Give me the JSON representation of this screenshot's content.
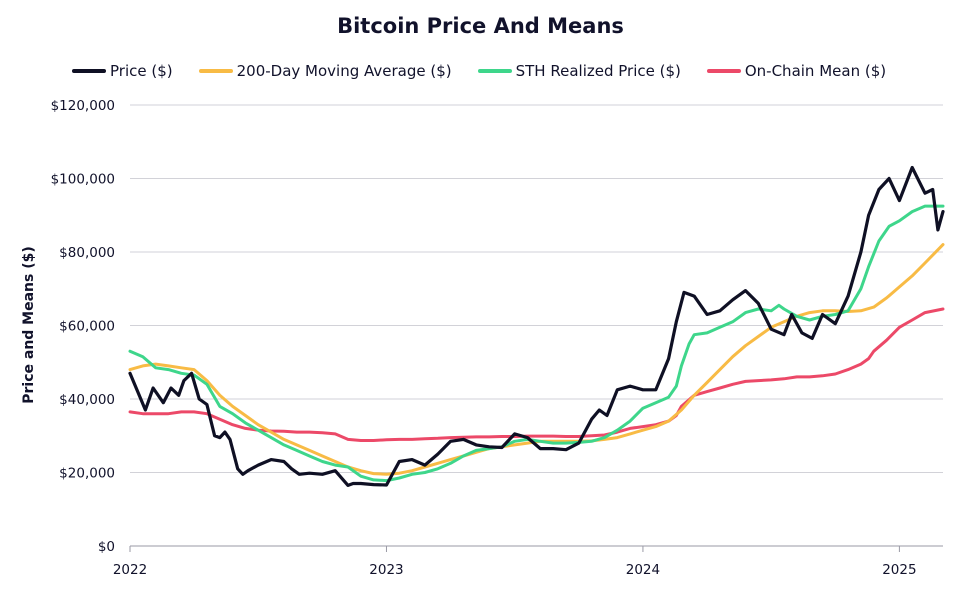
{
  "chart_data": {
    "type": "line",
    "title": "Bitcoin Price And Means",
    "xlabel": "",
    "ylabel": "Price and Means ($)",
    "xlim": [
      2022.0,
      2025.17
    ],
    "ylim": [
      0,
      120000
    ],
    "y_ticks": [
      0,
      20000,
      40000,
      60000,
      80000,
      100000,
      120000
    ],
    "y_tick_labels": [
      "$0",
      "$20,000",
      "$40,000",
      "$60,000",
      "$80,000",
      "$100,000",
      "$120,000"
    ],
    "x_ticks": [
      2022,
      2023,
      2024,
      2025
    ],
    "x_tick_labels": [
      "2022",
      "2023",
      "2024",
      "2025"
    ],
    "grid": "horizontal",
    "legend_position": "top",
    "series": [
      {
        "name": "Price ($)",
        "color": "#0f1024",
        "x": [
          2022.0,
          2022.03,
          2022.06,
          2022.09,
          2022.13,
          2022.16,
          2022.19,
          2022.21,
          2022.24,
          2022.27,
          2022.3,
          2022.33,
          2022.35,
          2022.37,
          2022.39,
          2022.42,
          2022.44,
          2022.46,
          2022.5,
          2022.55,
          2022.6,
          2022.63,
          2022.66,
          2022.7,
          2022.75,
          2022.8,
          2022.85,
          2022.87,
          2022.9,
          2022.95,
          2023.0,
          2023.05,
          2023.1,
          2023.15,
          2023.2,
          2023.25,
          2023.3,
          2023.35,
          2023.4,
          2023.45,
          2023.5,
          2023.55,
          2023.6,
          2023.65,
          2023.7,
          2023.75,
          2023.8,
          2023.83,
          2023.86,
          2023.9,
          2023.95,
          2024.0,
          2024.05,
          2024.1,
          2024.13,
          2024.16,
          2024.2,
          2024.25,
          2024.3,
          2024.35,
          2024.4,
          2024.45,
          2024.5,
          2024.55,
          2024.58,
          2024.62,
          2024.66,
          2024.7,
          2024.75,
          2024.8,
          2024.85,
          2024.88,
          2024.92,
          2024.96,
          2025.0,
          2025.05,
          2025.1,
          2025.13,
          2025.15,
          2025.17
        ],
        "y": [
          47000,
          42000,
          37000,
          43000,
          39000,
          43000,
          41000,
          45000,
          47000,
          40000,
          38500,
          30000,
          29500,
          31000,
          29000,
          21000,
          19500,
          20500,
          22000,
          23500,
          23000,
          21000,
          19500,
          19800,
          19500,
          20500,
          16500,
          17000,
          17000,
          16700,
          16600,
          23000,
          23500,
          22000,
          25000,
          28500,
          29000,
          27500,
          27000,
          26800,
          30500,
          29500,
          26500,
          26500,
          26200,
          28000,
          34500,
          37000,
          35500,
          42500,
          43500,
          42500,
          42500,
          51000,
          61000,
          69000,
          68000,
          63000,
          64000,
          67000,
          69500,
          66000,
          59000,
          57500,
          63000,
          58000,
          56500,
          63000,
          60500,
          68000,
          80000,
          90000,
          97000,
          100000,
          94000,
          103000,
          96000,
          97000,
          86000,
          91000
        ]
      },
      {
        "name": "200-Day Moving Average ($)",
        "color": "#f8bb45",
        "x": [
          2022.0,
          2022.05,
          2022.1,
          2022.15,
          2022.2,
          2022.25,
          2022.3,
          2022.35,
          2022.4,
          2022.45,
          2022.5,
          2022.55,
          2022.6,
          2022.65,
          2022.7,
          2022.75,
          2022.8,
          2022.85,
          2022.9,
          2022.95,
          2023.0,
          2023.05,
          2023.1,
          2023.15,
          2023.2,
          2023.25,
          2023.3,
          2023.35,
          2023.4,
          2023.45,
          2023.5,
          2023.55,
          2023.6,
          2023.65,
          2023.7,
          2023.75,
          2023.8,
          2023.85,
          2023.9,
          2023.95,
          2024.0,
          2024.05,
          2024.1,
          2024.15,
          2024.2,
          2024.25,
          2024.3,
          2024.35,
          2024.4,
          2024.45,
          2024.5,
          2024.55,
          2024.6,
          2024.65,
          2024.7,
          2024.75,
          2024.8,
          2024.85,
          2024.9,
          2024.95,
          2025.0,
          2025.05,
          2025.1,
          2025.17
        ],
        "y": [
          48000,
          49000,
          49500,
          49000,
          48500,
          48000,
          45000,
          41000,
          38000,
          35500,
          33000,
          31000,
          29000,
          27500,
          26000,
          24500,
          23000,
          21500,
          20500,
          19700,
          19500,
          19800,
          20500,
          21500,
          22500,
          23500,
          24500,
          25500,
          26500,
          27000,
          27500,
          28000,
          28500,
          28500,
          28500,
          28500,
          28600,
          29000,
          29500,
          30500,
          31500,
          32500,
          34000,
          37000,
          41000,
          44500,
          48000,
          51500,
          54500,
          57000,
          59500,
          61000,
          62500,
          63500,
          64000,
          64000,
          63800,
          64000,
          65000,
          67500,
          70500,
          73500,
          77000,
          82000
        ]
      },
      {
        "name": "STH Realized Price ($)",
        "color": "#3ed68b",
        "x": [
          2022.0,
          2022.05,
          2022.1,
          2022.15,
          2022.2,
          2022.25,
          2022.3,
          2022.35,
          2022.4,
          2022.45,
          2022.5,
          2022.55,
          2022.6,
          2022.65,
          2022.7,
          2022.75,
          2022.8,
          2022.85,
          2022.9,
          2022.95,
          2023.0,
          2023.05,
          2023.1,
          2023.15,
          2023.2,
          2023.25,
          2023.3,
          2023.35,
          2023.4,
          2023.45,
          2023.5,
          2023.55,
          2023.6,
          2023.65,
          2023.7,
          2023.75,
          2023.8,
          2023.85,
          2023.9,
          2023.95,
          2024.0,
          2024.05,
          2024.1,
          2024.13,
          2024.15,
          2024.18,
          2024.2,
          2024.25,
          2024.3,
          2024.35,
          2024.4,
          2024.45,
          2024.5,
          2024.53,
          2024.55,
          2024.6,
          2024.65,
          2024.7,
          2024.75,
          2024.8,
          2024.85,
          2024.88,
          2024.92,
          2024.96,
          2025.0,
          2025.05,
          2025.1,
          2025.17
        ],
        "y": [
          53000,
          51500,
          48500,
          48000,
          47000,
          46500,
          44000,
          38000,
          36000,
          33500,
          31500,
          29500,
          27500,
          26000,
          24500,
          23000,
          22000,
          21500,
          19000,
          18000,
          17800,
          18500,
          19500,
          20000,
          21000,
          22500,
          24500,
          26000,
          26500,
          27000,
          28500,
          29000,
          28500,
          28000,
          28000,
          28200,
          28500,
          29500,
          31500,
          34000,
          37500,
          39000,
          40500,
          43500,
          49000,
          55000,
          57500,
          58000,
          59500,
          61000,
          63500,
          64500,
          64000,
          65500,
          64500,
          62500,
          61500,
          62500,
          63000,
          64000,
          70000,
          76000,
          83000,
          87000,
          88500,
          91000,
          92500,
          92500
        ]
      },
      {
        "name": "On-Chain Mean ($)",
        "color": "#ec4968",
        "x": [
          2022.0,
          2022.05,
          2022.1,
          2022.15,
          2022.2,
          2022.25,
          2022.3,
          2022.35,
          2022.4,
          2022.45,
          2022.5,
          2022.55,
          2022.6,
          2022.65,
          2022.7,
          2022.75,
          2022.8,
          2022.85,
          2022.9,
          2022.95,
          2023.0,
          2023.05,
          2023.1,
          2023.15,
          2023.2,
          2023.25,
          2023.3,
          2023.35,
          2023.4,
          2023.45,
          2023.5,
          2023.55,
          2023.6,
          2023.65,
          2023.7,
          2023.75,
          2023.8,
          2023.85,
          2023.9,
          2023.95,
          2024.0,
          2024.05,
          2024.1,
          2024.13,
          2024.15,
          2024.2,
          2024.25,
          2024.3,
          2024.35,
          2024.4,
          2024.45,
          2024.5,
          2024.55,
          2024.6,
          2024.65,
          2024.7,
          2024.75,
          2024.8,
          2024.85,
          2024.88,
          2024.9,
          2024.95,
          2025.0,
          2025.05,
          2025.1,
          2025.17
        ],
        "y": [
          36500,
          36000,
          36000,
          36000,
          36500,
          36500,
          36000,
          34500,
          33000,
          32000,
          31500,
          31300,
          31200,
          31000,
          31000,
          30800,
          30500,
          29000,
          28700,
          28700,
          28900,
          29000,
          29000,
          29200,
          29300,
          29500,
          29600,
          29700,
          29700,
          29800,
          29800,
          29900,
          29900,
          29900,
          29800,
          29800,
          30000,
          30200,
          31000,
          32000,
          32500,
          33000,
          34000,
          35500,
          38000,
          41000,
          42000,
          43000,
          44000,
          44800,
          45000,
          45200,
          45500,
          46000,
          46000,
          46300,
          46800,
          48000,
          49500,
          51000,
          53000,
          56000,
          59500,
          61500,
          63500,
          64500
        ]
      }
    ]
  }
}
